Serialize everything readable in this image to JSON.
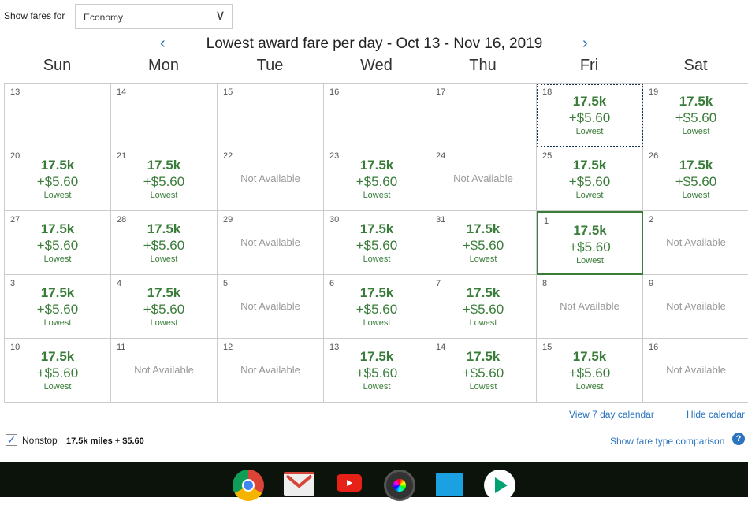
{
  "filter": {
    "label": "Show fares for",
    "cabin": "Economy"
  },
  "title": "Lowest award fare per day - Oct 13 - Nov 16, 2019",
  "days_of_week": [
    "Sun",
    "Mon",
    "Tue",
    "Wed",
    "Thu",
    "Fri",
    "Sat"
  ],
  "fare": {
    "miles": "17.5k",
    "tax": "+$5.60",
    "note": "Lowest"
  },
  "not_available": "Not Available",
  "weeks": [
    [
      {
        "day": "13"
      },
      {
        "day": "14"
      },
      {
        "day": "15"
      },
      {
        "day": "16"
      },
      {
        "day": "17"
      },
      {
        "day": "18",
        "avail": true,
        "focused": true
      },
      {
        "day": "19",
        "avail": true
      }
    ],
    [
      {
        "day": "20",
        "avail": true
      },
      {
        "day": "21",
        "avail": true
      },
      {
        "day": "22",
        "avail": false
      },
      {
        "day": "23",
        "avail": true
      },
      {
        "day": "24",
        "avail": false
      },
      {
        "day": "25",
        "avail": true
      },
      {
        "day": "26",
        "avail": true
      }
    ],
    [
      {
        "day": "27",
        "avail": true
      },
      {
        "day": "28",
        "avail": true
      },
      {
        "day": "29",
        "avail": false
      },
      {
        "day": "30",
        "avail": true
      },
      {
        "day": "31",
        "avail": true
      },
      {
        "day": "1",
        "avail": true,
        "selected": true
      },
      {
        "day": "2",
        "avail": false
      }
    ],
    [
      {
        "day": "3",
        "avail": true
      },
      {
        "day": "4",
        "avail": true
      },
      {
        "day": "5",
        "avail": false
      },
      {
        "day": "6",
        "avail": true
      },
      {
        "day": "7",
        "avail": true
      },
      {
        "day": "8",
        "avail": false
      },
      {
        "day": "9",
        "avail": false
      }
    ],
    [
      {
        "day": "10",
        "avail": true
      },
      {
        "day": "11",
        "avail": false
      },
      {
        "day": "12",
        "avail": false
      },
      {
        "day": "13",
        "avail": true
      },
      {
        "day": "14",
        "avail": true
      },
      {
        "day": "15",
        "avail": true
      },
      {
        "day": "16",
        "avail": false
      }
    ]
  ],
  "links": {
    "view7": "View 7 day calendar",
    "hide": "Hide calendar",
    "compare": "Show fare type comparison"
  },
  "nonstop": {
    "label": "Nonstop",
    "checked": true,
    "summary": "17.5k miles + $5.60"
  },
  "taskbar": [
    "chrome-icon",
    "gmail-icon",
    "youtube-icon",
    "camera-icon",
    "files-icon",
    "play-store-icon"
  ],
  "colors": {
    "fare": "#3a7d3a",
    "link": "#2a74c0"
  }
}
